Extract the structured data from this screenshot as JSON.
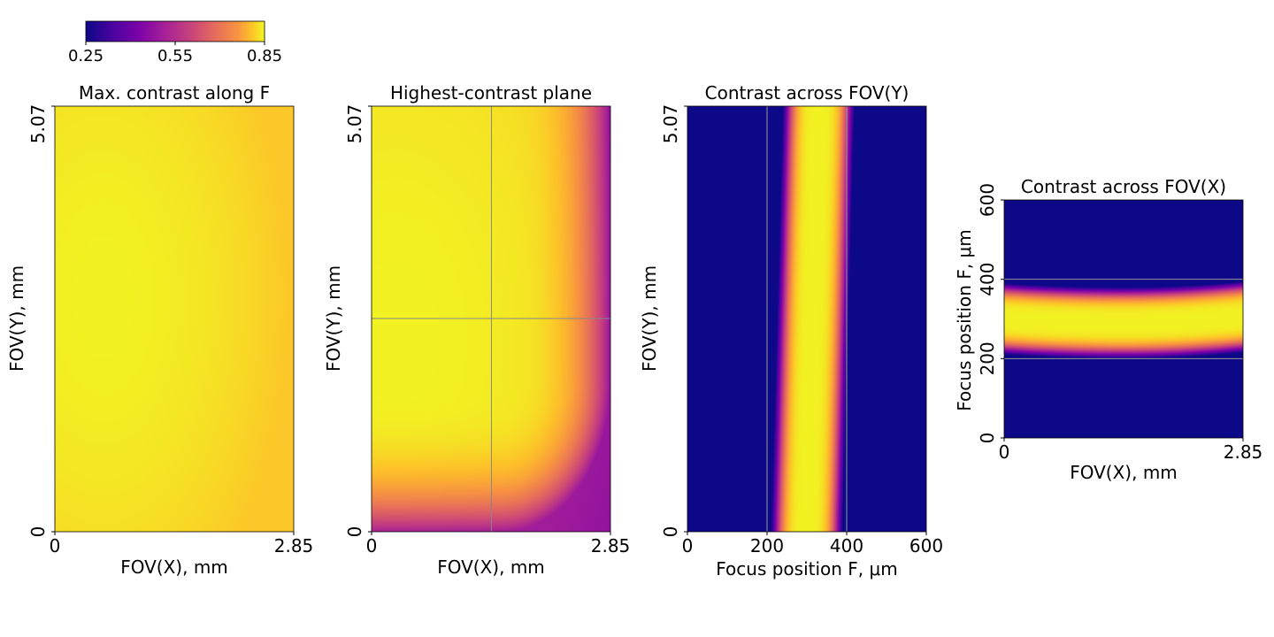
{
  "colorbar": {
    "ticks": [
      "0.25",
      "0.55",
      "0.85"
    ],
    "range": [
      0.25,
      0.85
    ],
    "colormap": "plasma"
  },
  "chart_data": [
    {
      "type": "heatmap",
      "title": "Max. contrast along F",
      "xlabel": "FOV(X), mm",
      "ylabel": "FOV(Y), mm",
      "xlim": [
        0,
        2.85
      ],
      "ylim": [
        0,
        5.07
      ],
      "xticks": [
        "0",
        "2.85"
      ],
      "yticks": [
        "0",
        "5.07"
      ],
      "value_range": [
        0.78,
        0.84
      ],
      "description_values": {
        "center": 0.84,
        "corners": 0.78
      }
    },
    {
      "type": "heatmap",
      "title": "Highest-contrast plane",
      "xlabel": "FOV(X), mm",
      "ylabel": "FOV(Y), mm",
      "xlim": [
        0,
        2.85
      ],
      "ylim": [
        0,
        5.07
      ],
      "xticks": [
        "0",
        "2.85"
      ],
      "yticks": [
        "0",
        "5.07"
      ],
      "crosshair": {
        "x": 1.43,
        "y": 2.54
      },
      "value_range": [
        0.45,
        0.84
      ],
      "description_values": {
        "upper_left": 0.84,
        "lower_right": 0.45
      }
    },
    {
      "type": "heatmap",
      "title": "Contrast across FOV(Y)",
      "xlabel": "Focus position F, μm",
      "ylabel": "FOV(Y), mm",
      "xlim": [
        0,
        600
      ],
      "ylim": [
        0,
        5.07
      ],
      "xticks": [
        "0",
        "200",
        "400",
        "600"
      ],
      "yticks": [
        "0",
        "5.07"
      ],
      "vlines": [
        200,
        400
      ],
      "peak_focus": {
        "at_y_min": 300,
        "at_y_max": 330
      },
      "band_halfwidth": 90
    },
    {
      "type": "heatmap",
      "title": "Contrast across FOV(X)",
      "xlabel": "FOV(X), mm",
      "ylabel": "Focus position F, μm",
      "xlim": [
        0,
        2.85
      ],
      "ylim": [
        0,
        600
      ],
      "xticks": [
        "0",
        "2.85"
      ],
      "yticks": [
        "0",
        "200",
        "400",
        "600"
      ],
      "hlines": [
        200,
        400
      ],
      "peak_focus": {
        "at_x_min": 300,
        "at_x_mid": 290,
        "at_x_max": 305
      },
      "band_halfwidth": 90
    }
  ]
}
